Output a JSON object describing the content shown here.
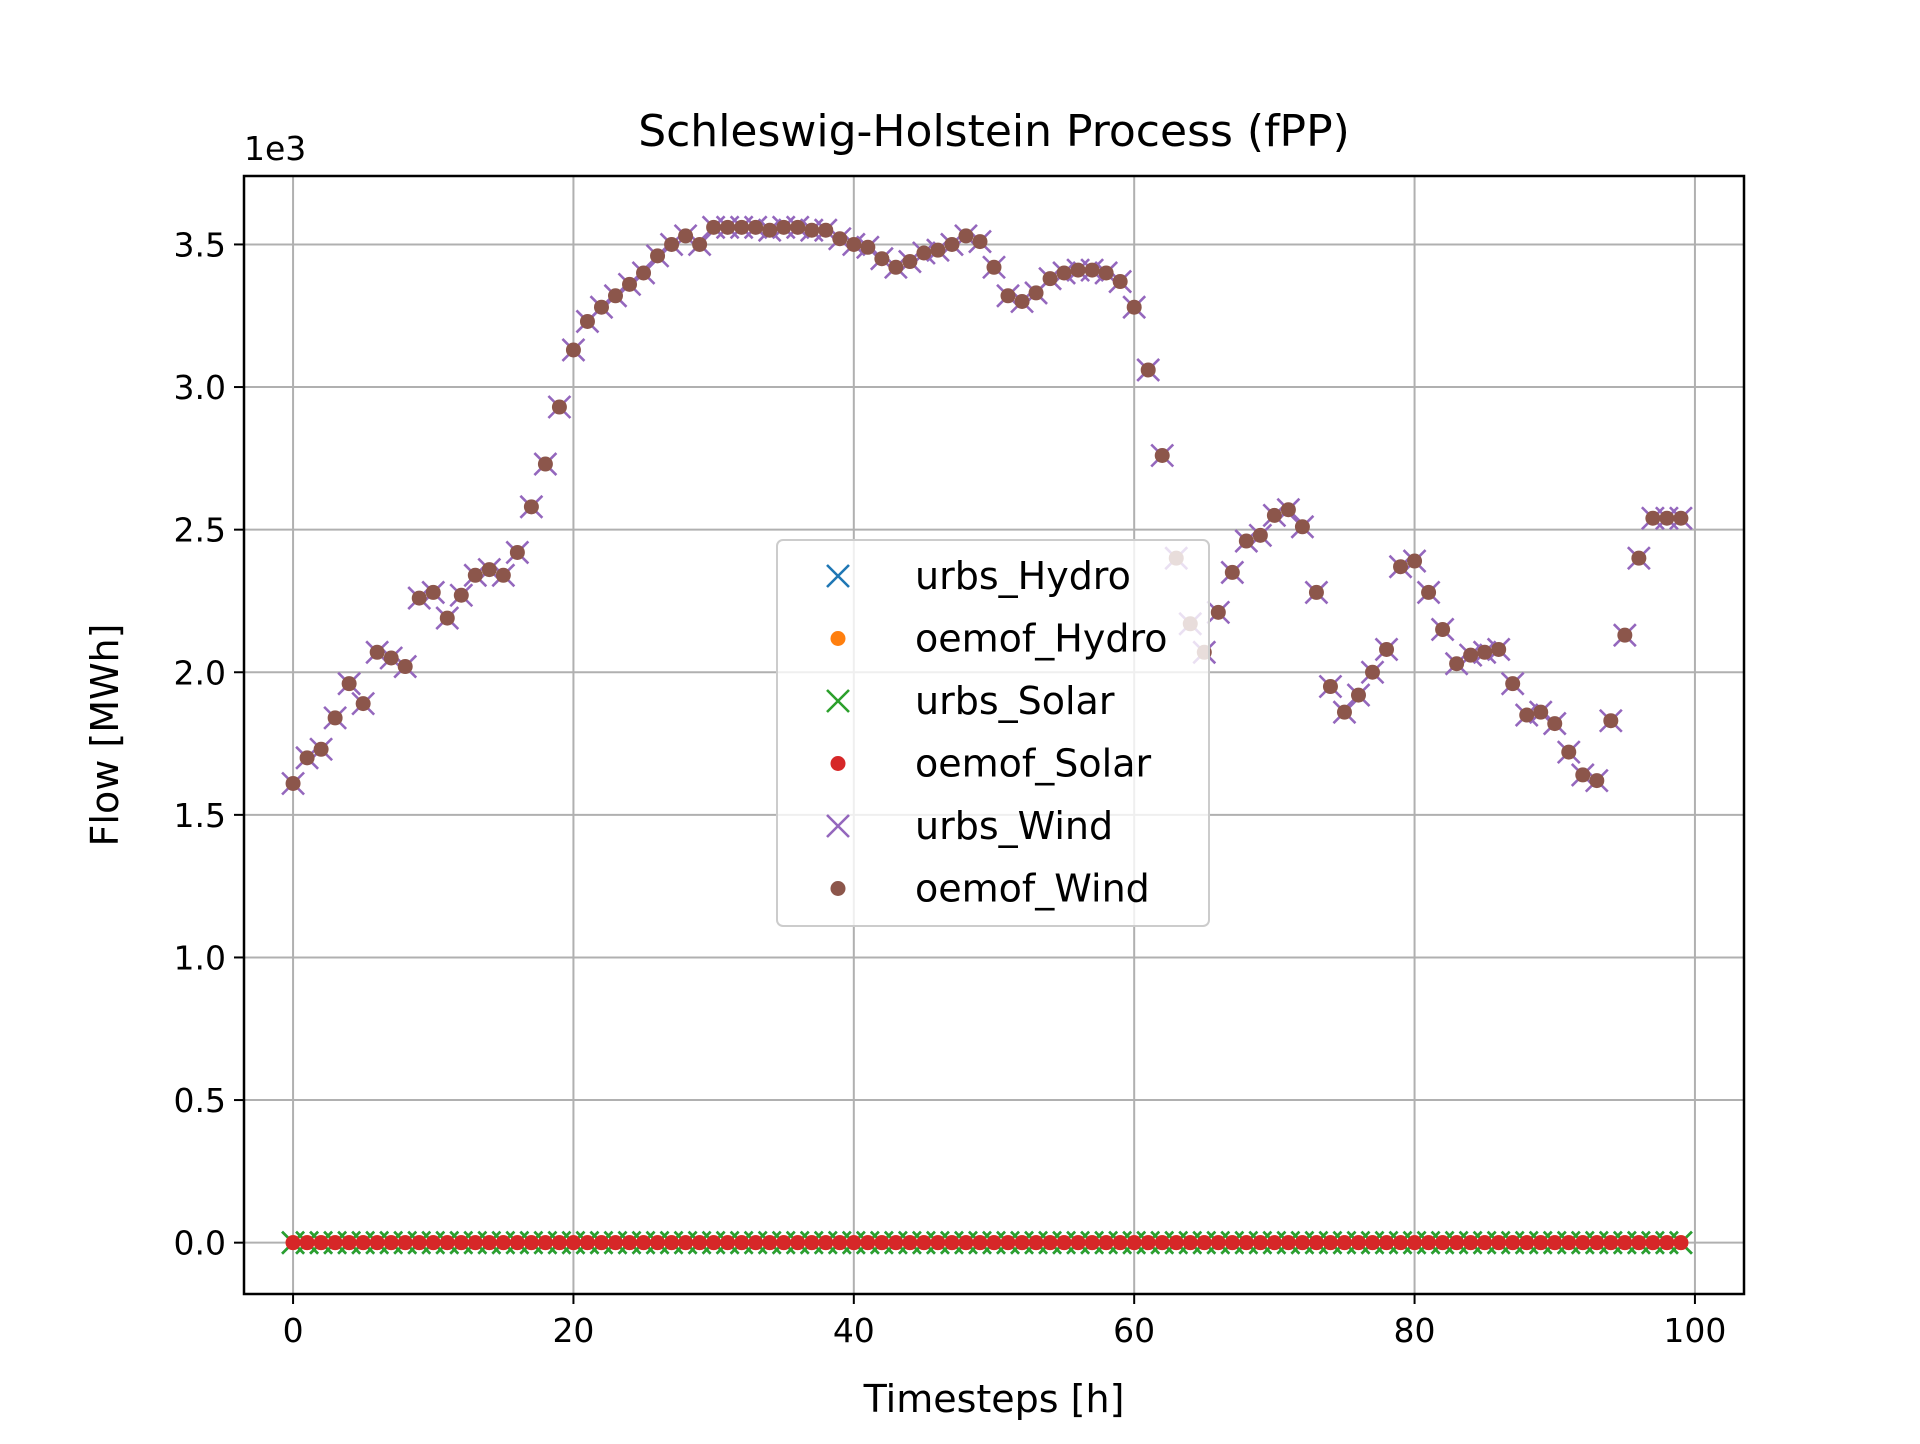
{
  "chart_data": {
    "type": "scatter",
    "title": "Schleswig-Holstein Process (fPP)",
    "xlabel": "Timesteps [h]",
    "ylabel": "Flow [MWh]",
    "y_offset_label": "1e3",
    "y_multiplier": 1000,
    "xlim": [
      -3.5,
      103.5
    ],
    "ylim": [
      -0.18,
      3.74
    ],
    "x_ticks": [
      0,
      20,
      40,
      60,
      80,
      100
    ],
    "x_tick_labels": [
      "0",
      "20",
      "40",
      "60",
      "80",
      "100"
    ],
    "y_ticks": [
      0.0,
      0.5,
      1.0,
      1.5,
      2.0,
      2.5,
      3.0,
      3.5
    ],
    "y_tick_labels": [
      "0.0",
      "0.5",
      "1.0",
      "1.5",
      "2.0",
      "2.5",
      "3.0",
      "3.5"
    ],
    "grid": true,
    "legend_position": "center",
    "x": [
      0,
      1,
      2,
      3,
      4,
      5,
      6,
      7,
      8,
      9,
      10,
      11,
      12,
      13,
      14,
      15,
      16,
      17,
      18,
      19,
      20,
      21,
      22,
      23,
      24,
      25,
      26,
      27,
      28,
      29,
      30,
      31,
      32,
      33,
      34,
      35,
      36,
      37,
      38,
      39,
      40,
      41,
      42,
      43,
      44,
      45,
      46,
      47,
      48,
      49,
      50,
      51,
      52,
      53,
      54,
      55,
      56,
      57,
      58,
      59,
      60,
      61,
      62,
      63,
      64,
      65,
      66,
      67,
      68,
      69,
      70,
      71,
      72,
      73,
      74,
      75,
      76,
      77,
      78,
      79,
      80,
      81,
      82,
      83,
      84,
      85,
      86,
      87,
      88,
      89,
      90,
      91,
      92,
      93,
      94,
      95,
      96,
      97,
      98,
      99
    ],
    "series": [
      {
        "name": "urbs_Hydro",
        "marker": "x",
        "color": "#1f77b4",
        "values": [
          0,
          0,
          0,
          0,
          0,
          0,
          0,
          0,
          0,
          0,
          0,
          0,
          0,
          0,
          0,
          0,
          0,
          0,
          0,
          0,
          0,
          0,
          0,
          0,
          0,
          0,
          0,
          0,
          0,
          0,
          0,
          0,
          0,
          0,
          0,
          0,
          0,
          0,
          0,
          0,
          0,
          0,
          0,
          0,
          0,
          0,
          0,
          0,
          0,
          0,
          0,
          0,
          0,
          0,
          0,
          0,
          0,
          0,
          0,
          0,
          0,
          0,
          0,
          0,
          0,
          0,
          0,
          0,
          0,
          0,
          0,
          0,
          0,
          0,
          0,
          0,
          0,
          0,
          0,
          0,
          0,
          0,
          0,
          0,
          0,
          0,
          0,
          0,
          0,
          0,
          0,
          0,
          0,
          0,
          0,
          0,
          0,
          0,
          0,
          0
        ]
      },
      {
        "name": "oemof_Hydro",
        "marker": "dot",
        "color": "#ff7f0e",
        "values": [
          0,
          0,
          0,
          0,
          0,
          0,
          0,
          0,
          0,
          0,
          0,
          0,
          0,
          0,
          0,
          0,
          0,
          0,
          0,
          0,
          0,
          0,
          0,
          0,
          0,
          0,
          0,
          0,
          0,
          0,
          0,
          0,
          0,
          0,
          0,
          0,
          0,
          0,
          0,
          0,
          0,
          0,
          0,
          0,
          0,
          0,
          0,
          0,
          0,
          0,
          0,
          0,
          0,
          0,
          0,
          0,
          0,
          0,
          0,
          0,
          0,
          0,
          0,
          0,
          0,
          0,
          0,
          0,
          0,
          0,
          0,
          0,
          0,
          0,
          0,
          0,
          0,
          0,
          0,
          0,
          0,
          0,
          0,
          0,
          0,
          0,
          0,
          0,
          0,
          0,
          0,
          0,
          0,
          0,
          0,
          0,
          0,
          0,
          0,
          0
        ]
      },
      {
        "name": "urbs_Solar",
        "marker": "x",
        "color": "#2ca02c",
        "values": [
          0,
          0,
          0,
          0,
          0,
          0,
          0,
          0,
          0,
          0,
          0,
          0,
          0,
          0,
          0,
          0,
          0,
          0,
          0,
          0,
          0,
          0,
          0,
          0,
          0,
          0,
          0,
          0,
          0,
          0,
          0,
          0,
          0,
          0,
          0,
          0,
          0,
          0,
          0,
          0,
          0,
          0,
          0,
          0,
          0,
          0,
          0,
          0,
          0,
          0,
          0,
          0,
          0,
          0,
          0,
          0,
          0,
          0,
          0,
          0,
          0,
          0,
          0,
          0,
          0,
          0,
          0,
          0,
          0,
          0,
          0,
          0,
          0,
          0,
          0,
          0,
          0,
          0,
          0,
          0,
          0,
          0,
          0,
          0,
          0,
          0,
          0,
          0,
          0,
          0,
          0,
          0,
          0,
          0,
          0,
          0,
          0,
          0,
          0,
          0
        ]
      },
      {
        "name": "oemof_Solar",
        "marker": "dot",
        "color": "#d62728",
        "values": [
          0,
          0,
          0,
          0,
          0,
          0,
          0,
          0,
          0,
          0,
          0,
          0,
          0,
          0,
          0,
          0,
          0,
          0,
          0,
          0,
          0,
          0,
          0,
          0,
          0,
          0,
          0,
          0,
          0,
          0,
          0,
          0,
          0,
          0,
          0,
          0,
          0,
          0,
          0,
          0,
          0,
          0,
          0,
          0,
          0,
          0,
          0,
          0,
          0,
          0,
          0,
          0,
          0,
          0,
          0,
          0,
          0,
          0,
          0,
          0,
          0,
          0,
          0,
          0,
          0,
          0,
          0,
          0,
          0,
          0,
          0,
          0,
          0,
          0,
          0,
          0,
          0,
          0,
          0,
          0,
          0,
          0,
          0,
          0,
          0,
          0,
          0,
          0,
          0,
          0,
          0,
          0,
          0,
          0,
          0,
          0,
          0,
          0,
          0,
          0
        ]
      },
      {
        "name": "urbs_Wind",
        "marker": "x",
        "color": "#9467bd",
        "values": [
          1.61,
          1.7,
          1.73,
          1.84,
          1.96,
          1.89,
          2.07,
          2.05,
          2.02,
          2.26,
          2.28,
          2.19,
          2.27,
          2.34,
          2.36,
          2.34,
          2.42,
          2.58,
          2.73,
          2.93,
          3.13,
          3.23,
          3.28,
          3.32,
          3.36,
          3.4,
          3.46,
          3.5,
          3.53,
          3.5,
          3.56,
          3.56,
          3.56,
          3.56,
          3.55,
          3.56,
          3.56,
          3.55,
          3.55,
          3.52,
          3.5,
          3.49,
          3.45,
          3.42,
          3.44,
          3.47,
          3.48,
          3.5,
          3.53,
          3.51,
          3.42,
          3.32,
          3.3,
          3.33,
          3.38,
          3.4,
          3.41,
          3.41,
          3.4,
          3.37,
          3.28,
          3.06,
          2.76,
          2.4,
          2.17,
          2.07,
          2.21,
          2.35,
          2.46,
          2.48,
          2.55,
          2.57,
          2.51,
          2.28,
          1.95,
          1.86,
          1.92,
          2.0,
          2.08,
          2.37,
          2.39,
          2.28,
          2.15,
          2.03,
          2.06,
          2.07,
          2.08,
          1.96,
          1.85,
          1.86,
          1.82,
          1.72,
          1.64,
          1.62,
          1.83,
          2.13,
          2.4,
          2.54,
          2.54,
          2.54
        ]
      },
      {
        "name": "oemof_Wind",
        "marker": "dot",
        "color": "#8c564b",
        "values": [
          1.61,
          1.7,
          1.73,
          1.84,
          1.96,
          1.89,
          2.07,
          2.05,
          2.02,
          2.26,
          2.28,
          2.19,
          2.27,
          2.34,
          2.36,
          2.34,
          2.42,
          2.58,
          2.73,
          2.93,
          3.13,
          3.23,
          3.28,
          3.32,
          3.36,
          3.4,
          3.46,
          3.5,
          3.53,
          3.5,
          3.56,
          3.56,
          3.56,
          3.56,
          3.55,
          3.56,
          3.56,
          3.55,
          3.55,
          3.52,
          3.5,
          3.49,
          3.45,
          3.42,
          3.44,
          3.47,
          3.48,
          3.5,
          3.53,
          3.51,
          3.42,
          3.32,
          3.3,
          3.33,
          3.38,
          3.4,
          3.41,
          3.41,
          3.4,
          3.37,
          3.28,
          3.06,
          2.76,
          2.4,
          2.17,
          2.07,
          2.21,
          2.35,
          2.46,
          2.48,
          2.55,
          2.57,
          2.51,
          2.28,
          1.95,
          1.86,
          1.92,
          2.0,
          2.08,
          2.37,
          2.39,
          2.28,
          2.15,
          2.03,
          2.06,
          2.07,
          2.08,
          1.96,
          1.85,
          1.86,
          1.82,
          1.72,
          1.64,
          1.62,
          1.83,
          2.13,
          2.4,
          2.54,
          2.54,
          2.54
        ]
      }
    ]
  }
}
